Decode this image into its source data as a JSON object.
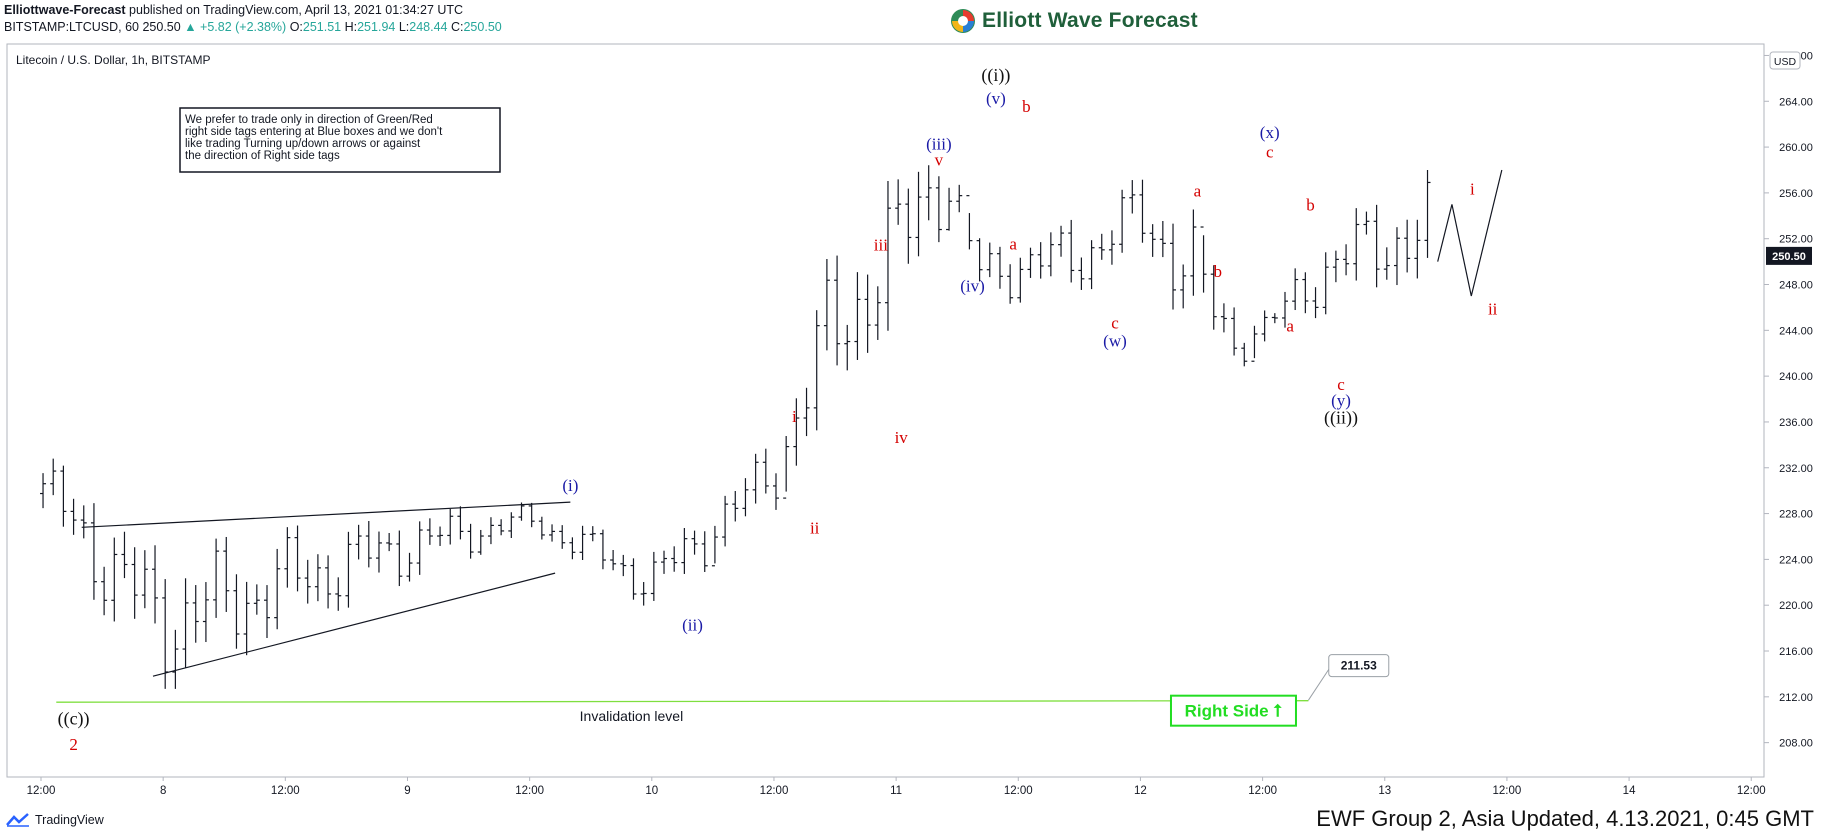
{
  "header": {
    "publisher": "Elliottwave-Forecast",
    "published_text": " published on TradingView.com, April 13, 2021 01:34:27 UTC",
    "symbol_line": "BITSTAMP:LTCUSD, 60",
    "last": "250.50",
    "change": "▲ +5.82 (+2.38%)",
    "o_label": " O:",
    "o": "251.51",
    "h_label": " H:",
    "h": "251.94",
    "l_label": " L:",
    "l": "248.44",
    "c_label": " C:",
    "c": "250.50"
  },
  "brand": {
    "name": "Elliott Wave Forecast"
  },
  "pane": {
    "title": "Litecoin / U.S. Dollar, 1h, BITSTAMP",
    "currency_badge": "USD"
  },
  "note": {
    "lines": [
      "We prefer to trade only in direction of Green/Red",
      "right side tags entering at Blue boxes and we don't",
      "like trading Turning up/down arrows or against",
      "the direction of Right side tags"
    ]
  },
  "footer": {
    "tradingview": "TradingView",
    "ewf_text": "EWF Group 2, Asia Updated, 4.13.2021, 0:45 GMT"
  },
  "colors": {
    "bar": "#131722",
    "red_label": "#d40000",
    "blue_label": "#1a1aa6",
    "black_label": "#111111",
    "invalidation_line": "#7fdf3f",
    "right_side": "#22dd22",
    "last_price_bg": "#131722"
  },
  "chart_data": {
    "type": "ohlc",
    "title": "Litecoin / U.S. Dollar, 1h, BITSTAMP",
    "y_axis": {
      "side": "right",
      "ylim": [
        205,
        269
      ],
      "ticks": [
        208,
        212,
        216,
        220,
        224,
        228,
        232,
        236,
        240,
        244,
        248,
        252,
        256,
        260,
        264,
        268
      ],
      "tick_labels": [
        "208.00",
        "212.00",
        "216.00",
        "220.00",
        "224.00",
        "228.00",
        "232.00",
        "236.00",
        "240.00",
        "244.00",
        "248.00",
        "252.00",
        "256.00",
        "260.00",
        "264.00",
        "268.00"
      ]
    },
    "x_axis": {
      "hours_range": [
        0,
        142.5
      ],
      "ticks": [
        {
          "h": 0,
          "label": "12:00"
        },
        {
          "h": 12,
          "label": "8"
        },
        {
          "h": 24,
          "label": "12:00"
        },
        {
          "h": 36,
          "label": "9"
        },
        {
          "h": 48,
          "label": "12:00"
        },
        {
          "h": 60,
          "label": "10"
        },
        {
          "h": 72,
          "label": "12:00"
        },
        {
          "h": 84,
          "label": "11"
        },
        {
          "h": 96,
          "label": "12:00"
        },
        {
          "h": 108,
          "label": "12"
        },
        {
          "h": 120,
          "label": "12:00"
        },
        {
          "h": 132,
          "label": "13"
        },
        {
          "h": 144,
          "label": "12:00"
        },
        {
          "h": 156,
          "label": "14"
        },
        {
          "h": 168,
          "label": "12:00"
        }
      ]
    },
    "grid": false,
    "last_price": {
      "value": 250.5,
      "label": "250.50"
    },
    "hl_anchor": [
      0.5,
      11.5,
      36,
      48,
      60,
      72,
      77,
      84,
      87.5,
      89.5,
      92,
      102,
      108,
      113,
      117,
      120.5,
      125,
      131,
      136
    ],
    "hl_high": [
      233.5,
      225,
      228.5,
      229,
      225,
      235,
      250,
      258,
      263.5,
      259,
      252,
      254,
      258,
      255,
      246,
      246,
      252.5,
      256,
      258
    ],
    "hl_low": [
      226,
      212,
      222,
      226,
      219,
      228,
      236,
      244,
      251,
      253,
      246,
      247,
      250,
      243,
      240,
      242.5,
      245,
      247,
      247
    ],
    "projection": {
      "x": [
        137.2,
        138.6,
        140.5,
        143.5
      ],
      "y": [
        250,
        255,
        247,
        258
      ]
    },
    "wedge_lines": [
      {
        "x": [
          4,
          52
        ],
        "y": [
          226.8,
          229
        ]
      },
      {
        "x": [
          11,
          50.5
        ],
        "y": [
          213.8,
          222.8
        ]
      }
    ],
    "invalidation": {
      "value": 211.53,
      "label": "Invalidation level",
      "callout": "211.53"
    },
    "right_side_tag": "Right Side ⭡",
    "wave_labels": [
      {
        "text": "((c))",
        "h": 3.2,
        "p": 210.8,
        "color": "black",
        "va": "top"
      },
      {
        "text": "2",
        "h": 3.2,
        "p": 208.6,
        "color": "red",
        "va": "top"
      },
      {
        "text": "(i)",
        "h": 52,
        "p": 229.8,
        "color": "blue",
        "va": "bottom"
      },
      {
        "text": "(ii)",
        "h": 64,
        "p": 219.0,
        "color": "blue",
        "va": "top"
      },
      {
        "text": "i",
        "h": 74,
        "p": 235.8,
        "color": "red",
        "va": "bottom"
      },
      {
        "text": "ii",
        "h": 76,
        "p": 227.5,
        "color": "red",
        "va": "top"
      },
      {
        "text": "iii",
        "h": 82.5,
        "p": 250.8,
        "color": "red",
        "va": "bottom"
      },
      {
        "text": "iv",
        "h": 84.5,
        "p": 235.4,
        "color": "red",
        "va": "top"
      },
      {
        "text": "v",
        "h": 88.2,
        "p": 258.2,
        "color": "red",
        "va": "bottom"
      },
      {
        "text": "(iii)",
        "h": 88.2,
        "p": 259.6,
        "color": "blue",
        "va": "bottom"
      },
      {
        "text": "(iv)",
        "h": 91.5,
        "p": 248.6,
        "color": "blue",
        "va": "top"
      },
      {
        "text": "(v)",
        "h": 93.8,
        "p": 263.6,
        "color": "blue",
        "va": "bottom"
      },
      {
        "text": "((i))",
        "h": 93.8,
        "p": 265.6,
        "color": "black",
        "va": "bottom"
      },
      {
        "text": "a",
        "h": 95.5,
        "p": 252.3,
        "color": "red",
        "va": "top"
      },
      {
        "text": "b",
        "h": 96.8,
        "p": 262.9,
        "color": "red",
        "va": "bottom"
      },
      {
        "text": "c",
        "h": 105.5,
        "p": 245.4,
        "color": "red",
        "va": "top"
      },
      {
        "text": "(w)",
        "h": 105.5,
        "p": 243.8,
        "color": "blue",
        "va": "top"
      },
      {
        "text": "a",
        "h": 113.6,
        "p": 255.5,
        "color": "red",
        "va": "bottom"
      },
      {
        "text": "b",
        "h": 115.6,
        "p": 249.9,
        "color": "red",
        "va": "top"
      },
      {
        "text": "c",
        "h": 120.7,
        "p": 258.9,
        "color": "red",
        "va": "bottom"
      },
      {
        "text": "(x)",
        "h": 120.7,
        "p": 260.6,
        "color": "blue",
        "va": "bottom"
      },
      {
        "text": "b",
        "h": 124.7,
        "p": 254.3,
        "color": "red",
        "va": "bottom"
      },
      {
        "text": "a",
        "h": 122.7,
        "p": 245.1,
        "color": "red",
        "va": "top"
      },
      {
        "text": "c",
        "h": 127.7,
        "p": 240.0,
        "color": "red",
        "va": "top"
      },
      {
        "text": "(y)",
        "h": 127.7,
        "p": 238.6,
        "color": "blue",
        "va": "top"
      },
      {
        "text": "((ii))",
        "h": 127.7,
        "p": 237.1,
        "color": "black",
        "va": "top"
      },
      {
        "text": "i",
        "h": 140.6,
        "p": 255.7,
        "color": "red",
        "va": "bottom"
      },
      {
        "text": "ii",
        "h": 142.6,
        "p": 246.6,
        "color": "red",
        "va": "top"
      }
    ]
  }
}
